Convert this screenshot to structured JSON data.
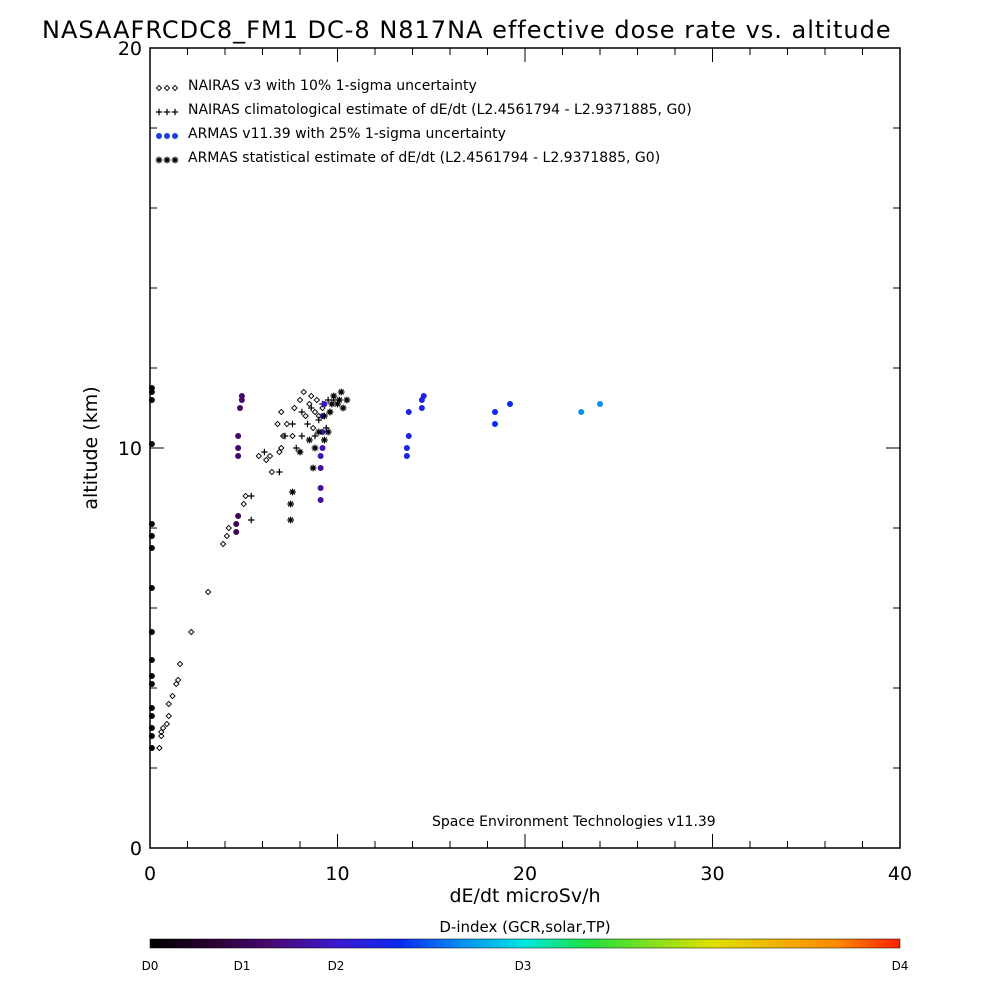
{
  "chart_data": {
    "type": "scatter",
    "title": "NASAAFRCDC8_FM1 DC-8   N817NA effective dose rate vs. altitude",
    "xlabel": "dE/dt microSv/h",
    "ylabel": "altitude (km)",
    "xlim": [
      0,
      40
    ],
    "ylim": [
      0,
      20
    ],
    "x_ticks": [
      0,
      10,
      20,
      30,
      40
    ],
    "y_ticks": [
      0,
      10,
      20
    ],
    "grid": false,
    "legend_position": "top-left",
    "credit": "Space Environment Technologies v11.39",
    "colorbar": {
      "title": "D-index (GCR,solar,TP)",
      "labels": [
        {
          "text": "D0",
          "value": 0
        },
        {
          "text": "D1",
          "value": 1
        },
        {
          "text": "D2",
          "value": 2
        },
        {
          "text": "D3",
          "value": 3
        },
        {
          "text": "D4",
          "value": 4
        }
      ],
      "stops": [
        {
          "value": 0,
          "color": "#000000"
        },
        {
          "value": 0.5,
          "color": "#2a0030"
        },
        {
          "value": 1,
          "color": "#4a0a78"
        },
        {
          "value": 1.5,
          "color": "#3a1ad0"
        },
        {
          "value": 2,
          "color": "#0a2af0"
        },
        {
          "value": 2.5,
          "color": "#0890f0"
        },
        {
          "value": 3,
          "color": "#00e8e0"
        },
        {
          "value": 3.5,
          "color": "#20e040"
        },
        {
          "value": 4.5,
          "color": "#e0e000"
        },
        {
          "value": 5.5,
          "color": "#ff8800"
        },
        {
          "value": 6,
          "color": "#ff2000"
        }
      ],
      "range": [
        0,
        6
      ]
    },
    "series": [
      {
        "name": "NAIRAS v3 with 10% 1-sigma uncertainty",
        "marker": "diamond",
        "color": "#000000",
        "points": [
          [
            0.5,
            2.5
          ],
          [
            0.6,
            2.8
          ],
          [
            0.6,
            2.9
          ],
          [
            0.7,
            3.0
          ],
          [
            0.9,
            3.1
          ],
          [
            1.0,
            3.3
          ],
          [
            1.0,
            3.6
          ],
          [
            1.2,
            3.8
          ],
          [
            1.4,
            4.1
          ],
          [
            1.5,
            4.2
          ],
          [
            1.6,
            4.6
          ],
          [
            2.2,
            5.4
          ],
          [
            3.1,
            6.4
          ],
          [
            3.9,
            7.6
          ],
          [
            4.1,
            7.8
          ],
          [
            4.2,
            8.0
          ],
          [
            5.0,
            8.6
          ],
          [
            5.1,
            8.8
          ],
          [
            5.8,
            9.8
          ],
          [
            6.2,
            9.7
          ],
          [
            6.4,
            9.8
          ],
          [
            6.5,
            9.4
          ],
          [
            6.9,
            9.9
          ],
          [
            7.0,
            10.0
          ],
          [
            7.1,
            10.3
          ],
          [
            6.8,
            10.6
          ],
          [
            7.0,
            10.9
          ],
          [
            7.3,
            10.6
          ],
          [
            7.6,
            10.3
          ],
          [
            7.7,
            11.0
          ],
          [
            8.0,
            11.2
          ],
          [
            8.2,
            11.4
          ],
          [
            8.3,
            10.8
          ],
          [
            8.5,
            11.1
          ],
          [
            8.6,
            11.3
          ],
          [
            8.7,
            10.5
          ],
          [
            8.8,
            10.9
          ],
          [
            8.9,
            11.2
          ],
          [
            9.0,
            10.8
          ],
          [
            9.2,
            11.0
          ]
        ]
      },
      {
        "name": "NAIRAS climatological estimate of dE/dt (L2.4561794 - L2.9371885, G0)",
        "marker": "plus",
        "color": "#000000",
        "points": [
          [
            5.4,
            8.2
          ],
          [
            5.4,
            8.8
          ],
          [
            6.1,
            9.9
          ],
          [
            6.9,
            9.4
          ],
          [
            7.2,
            10.3
          ],
          [
            7.6,
            10.6
          ],
          [
            7.8,
            10.0
          ],
          [
            8.1,
            10.3
          ],
          [
            8.1,
            10.9
          ],
          [
            8.4,
            10.6
          ],
          [
            8.6,
            11.0
          ],
          [
            8.8,
            10.3
          ],
          [
            9.0,
            10.7
          ],
          [
            9.2,
            11.1
          ],
          [
            9.4,
            10.5
          ],
          [
            9.5,
            11.2
          ],
          [
            9.6,
            10.9
          ],
          [
            9.8,
            11.2
          ]
        ]
      },
      {
        "name": "ARMAS v11.39 with 25% 1-sigma uncertainty",
        "marker": "dot",
        "points": [
          [
            0.1,
            2.5,
            0.1
          ],
          [
            0.1,
            2.8,
            0.1
          ],
          [
            0.1,
            3.0,
            0.1
          ],
          [
            0.1,
            3.3,
            0.1
          ],
          [
            0.1,
            3.5,
            0.1
          ],
          [
            0.1,
            4.1,
            0.1
          ],
          [
            0.1,
            4.3,
            0.1
          ],
          [
            0.1,
            4.7,
            0.1
          ],
          [
            0.1,
            5.4,
            0.1
          ],
          [
            0.1,
            6.5,
            0.1
          ],
          [
            0.1,
            7.5,
            0.1
          ],
          [
            0.1,
            7.8,
            0.1
          ],
          [
            0.1,
            8.1,
            0.1
          ],
          [
            0.1,
            10.1,
            0.1
          ],
          [
            0.1,
            11.2,
            0.1
          ],
          [
            0.1,
            11.4,
            0.1
          ],
          [
            0.1,
            11.5,
            0.1
          ],
          [
            4.6,
            7.9,
            0.8
          ],
          [
            4.6,
            8.1,
            0.8
          ],
          [
            4.7,
            8.3,
            0.8
          ],
          [
            4.7,
            9.8,
            0.9
          ],
          [
            4.7,
            10.0,
            0.9
          ],
          [
            4.7,
            10.3,
            0.9
          ],
          [
            4.8,
            11.0,
            0.9
          ],
          [
            4.9,
            11.2,
            0.9
          ],
          [
            4.9,
            11.3,
            0.9
          ],
          [
            9.1,
            8.7,
            1.2
          ],
          [
            9.1,
            9.0,
            1.2
          ],
          [
            9.1,
            9.5,
            1.2
          ],
          [
            9.1,
            9.8,
            1.3
          ],
          [
            9.2,
            10.0,
            1.3
          ],
          [
            9.2,
            10.4,
            1.3
          ],
          [
            9.2,
            10.8,
            1.3
          ],
          [
            9.3,
            11.1,
            1.4
          ],
          [
            13.7,
            9.8,
            1.8
          ],
          [
            13.7,
            10.0,
            1.8
          ],
          [
            13.8,
            10.3,
            1.8
          ],
          [
            13.8,
            10.9,
            1.8
          ],
          [
            14.5,
            11.0,
            1.8
          ],
          [
            14.5,
            11.2,
            1.8
          ],
          [
            14.6,
            11.3,
            1.8
          ],
          [
            18.4,
            10.6,
            2.0
          ],
          [
            18.4,
            10.9,
            2.0
          ],
          [
            19.2,
            11.1,
            2.0
          ],
          [
            23.0,
            10.9,
            2.5
          ],
          [
            24.0,
            11.1,
            2.5
          ]
        ]
      },
      {
        "name": "ARMAS statistical estimate of dE/dt (L2.4561794 - L2.9371885, G0)",
        "marker": "asterisk",
        "color": "#000000",
        "points": [
          [
            7.5,
            8.2
          ],
          [
            7.5,
            8.6
          ],
          [
            7.6,
            8.9
          ],
          [
            8.0,
            9.9
          ],
          [
            8.5,
            10.2
          ],
          [
            8.7,
            9.5
          ],
          [
            8.8,
            10.0
          ],
          [
            9.0,
            10.4
          ],
          [
            9.3,
            10.2
          ],
          [
            9.3,
            10.8
          ],
          [
            9.5,
            10.4
          ],
          [
            9.6,
            10.9
          ],
          [
            9.7,
            11.1
          ],
          [
            9.8,
            11.3
          ],
          [
            10.0,
            11.1
          ],
          [
            10.1,
            11.2
          ],
          [
            10.2,
            11.4
          ],
          [
            10.3,
            11.0
          ],
          [
            10.5,
            11.2
          ]
        ]
      }
    ]
  }
}
